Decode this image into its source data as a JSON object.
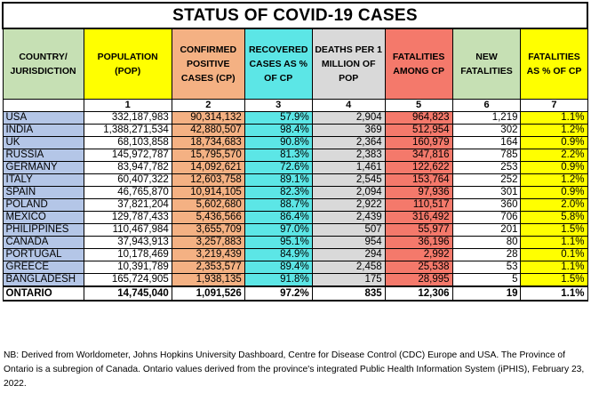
{
  "title": "STATUS OF COVID-19 CASES",
  "colors": {
    "country": "#b4c6e7",
    "confirmed": "#f4b183",
    "recovered": "#5ce6e6",
    "deaths_per_million": "#d9d9d9",
    "fatalities": "#f4796b",
    "fatality_pct": "#ffff00",
    "header_country": "#c6e0b4",
    "header_population": "#ffff00",
    "header_confirmed": "#f4b183",
    "header_recovered": "#5ce6e6",
    "header_deaths": "#d9d9d9",
    "header_fatalities": "#f4796b",
    "header_new": "#c6e0b4",
    "header_pct": "#ffff00"
  },
  "headers": [
    {
      "label": "COUNTRY/ JURISDICTION",
      "number": ""
    },
    {
      "label": "POPULATION (POP)",
      "number": "1"
    },
    {
      "label": "CONFIRMED POSITIVE CASES (CP)",
      "number": "2"
    },
    {
      "label": "RECOVERED CASES AS % OF CP",
      "number": "3"
    },
    {
      "label": "DEATHS PER 1 MILLION OF POP",
      "number": "4"
    },
    {
      "label": "FATALITIES AMONG CP",
      "number": "5"
    },
    {
      "label": "NEW FATALITIES",
      "number": "6"
    },
    {
      "label": "FATALITIES AS % OF CP",
      "number": "7"
    }
  ],
  "rows": [
    [
      "USA",
      "332,187,983",
      "90,314,132",
      "57.9%",
      "2,904",
      "964,823",
      "1,219",
      "1.1%"
    ],
    [
      "INDIA",
      "1,388,271,534",
      "42,880,507",
      "98.4%",
      "369",
      "512,954",
      "302",
      "1.2%"
    ],
    [
      "UK",
      "68,103,858",
      "18,734,683",
      "90.8%",
      "2,364",
      "160,979",
      "164",
      "0.9%"
    ],
    [
      "RUSSIA",
      "145,972,787",
      "15,795,570",
      "81.3%",
      "2,383",
      "347,816",
      "785",
      "2.2%"
    ],
    [
      "GERMANY",
      "83,947,782",
      "14,092,621",
      "72.6%",
      "1,461",
      "122,622",
      "253",
      "0.9%"
    ],
    [
      "ITALY",
      "60,407,322",
      "12,603,758",
      "89.1%",
      "2,545",
      "153,764",
      "252",
      "1.2%"
    ],
    [
      "SPAIN",
      "46,765,870",
      "10,914,105",
      "82.3%",
      "2,094",
      "97,936",
      "301",
      "0.9%"
    ],
    [
      "POLAND",
      "37,821,204",
      "5,602,680",
      "88.7%",
      "2,922",
      "110,517",
      "360",
      "2.0%"
    ],
    [
      "MEXICO",
      "129,787,433",
      "5,436,566",
      "86.4%",
      "2,439",
      "316,492",
      "706",
      "5.8%"
    ],
    [
      "PHILIPPINES",
      "110,467,984",
      "3,655,709",
      "97.0%",
      "507",
      "55,977",
      "201",
      "1.5%"
    ],
    [
      "CANADA",
      "37,943,913",
      "3,257,883",
      "95.1%",
      "954",
      "36,196",
      "80",
      "1.1%"
    ],
    [
      "PORTUGAL",
      "10,178,469",
      "3,219,439",
      "84.9%",
      "294",
      "2,992",
      "28",
      "0.1%"
    ],
    [
      "GREECE",
      "10,391,789",
      "2,353,577",
      "89.4%",
      "2,458",
      "25,538",
      "53",
      "1.1%"
    ],
    [
      "BANGLADESH",
      "165,724,905",
      "1,938,135",
      "91.8%",
      "175",
      "28,995",
      "5",
      "1.5%"
    ]
  ],
  "total": [
    "ONTARIO",
    "14,745,040",
    "1,091,526",
    "97.2%",
    "835",
    "12,306",
    "19",
    "1.1%"
  ],
  "note": "NB: Derived from Worldometer, Johns Hopkins University Dashboard, Centre for Disease Control (CDC) Europe and USA. The Province of Ontario is a subregion of Canada. Ontario values derived from the province's integrated Public Health Information System (iPHIS), February 23, 2022."
}
